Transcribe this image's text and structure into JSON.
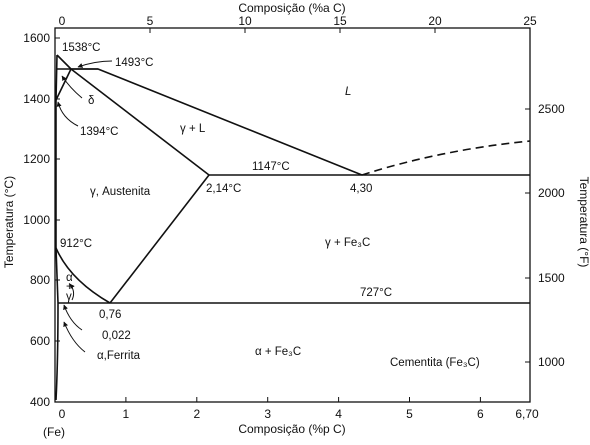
{
  "diagram": {
    "title_top": "Composição (%a C)",
    "title_bottom": "Composição (%p C)",
    "title_left": "Temperatura (°C)",
    "title_right": "Temperatura (°F)",
    "bottom_ticks": [
      "0",
      "1",
      "2",
      "3",
      "4",
      "5",
      "6",
      "6,70"
    ],
    "top_ticks": [
      "0",
      "5",
      "10",
      "15",
      "20",
      "25"
    ],
    "left_ticks": [
      "400",
      "600",
      "800",
      "1000",
      "1200",
      "1400",
      "1600"
    ],
    "right_ticks": [
      "1000",
      "1500",
      "2000",
      "2500"
    ],
    "fe_label": "(Fe)",
    "points": {
      "t1538": "1538°C",
      "t1493": "1493°C",
      "t1394": "1394°C",
      "t1147": "1147°C",
      "t912": "912°C",
      "t727": "727°C",
      "c214": "2,14°C",
      "c430": "4,30",
      "c076": "0,76",
      "c0022": "0,022"
    },
    "phases": {
      "liquid": "L",
      "delta": "δ",
      "gamma_liquid": "γ + L",
      "austenite": "γ, Austenita",
      "gamma_cementite": "γ + Fe₃C",
      "alpha_cementite": "α + Fe₃C",
      "cementite": "Cementita (Fe₃C)",
      "ferrite": "α,Ferrita",
      "alpha": "α",
      "plus": "+",
      "gamma": "γ"
    }
  }
}
